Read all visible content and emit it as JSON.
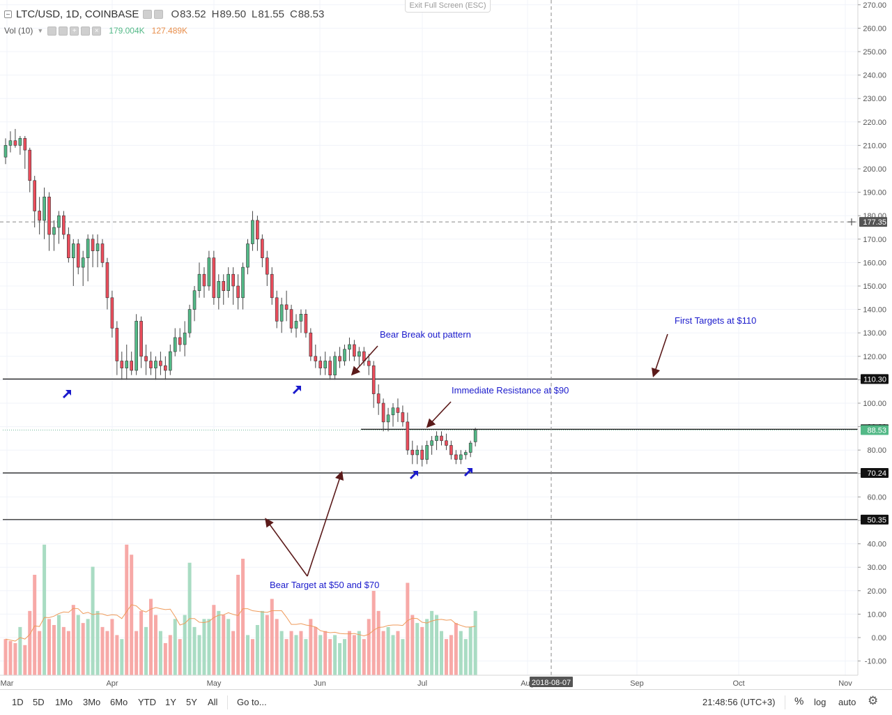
{
  "exit_full_screen": "Exit Full Screen (ESC)",
  "legend": {
    "symbol": "LTC/USD, 1D, COINBASE",
    "open_label": "O",
    "open": "83.52",
    "high_label": "H",
    "high": "89.50",
    "low_label": "L",
    "low": "81.55",
    "close_label": "C",
    "close": "88.53",
    "volume_label": "Vol (10)",
    "volume_value": "179.004K",
    "volume_ma_value": "127.489K"
  },
  "colors": {
    "up": "#53b987",
    "down": "#eb4d5c",
    "vol_up": "#a9dcc3",
    "vol_down": "#f7a9a7",
    "vol_ma": "#ef9a5a",
    "annotation": "#1a1acc",
    "arrow": "#5b1a1a",
    "grid": "#f0f3fa"
  },
  "toolbar": {
    "timeframes": [
      "1D",
      "5D",
      "1Mo",
      "3Mo",
      "6Mo",
      "YTD",
      "1Y",
      "5Y",
      "All"
    ],
    "goto": "Go to...",
    "clock": "21:48:56 (UTC+3)",
    "percent": "%",
    "log": "log",
    "auto": "auto",
    "settings_icon": "gear-icon"
  },
  "chart_data": {
    "type": "candlestick",
    "y_ticks": [
      "270.00",
      "260.00",
      "250.00",
      "240.00",
      "230.00",
      "220.00",
      "210.00",
      "200.00",
      "190.00",
      "180.00",
      "170.00",
      "160.00",
      "150.00",
      "140.00",
      "130.00",
      "120.00",
      "110.00",
      "100.00",
      "90.00",
      "80.00",
      "70.00",
      "60.00",
      "50.00",
      "40.00",
      "30.00",
      "20.00",
      "10.00",
      "0.00",
      "-10.00"
    ],
    "x_ticks": [
      "Mar",
      "Apr",
      "May",
      "Jun",
      "Jul",
      "Aug",
      "Sep",
      "Oct",
      "Nov"
    ],
    "crosshair_date": "2018-08-07",
    "crosshair_price": "177.35",
    "horizontal_levels": [
      110.3,
      88.88,
      70.24,
      50.35
    ],
    "price_labels": [
      {
        "value": 177.35,
        "text": "177.35",
        "style": "crosshair"
      },
      {
        "value": 110.3,
        "text": "110.30",
        "style": "level"
      },
      {
        "value": 88.88,
        "text": "88.88",
        "style": "level"
      },
      {
        "value": 88.53,
        "text": "88.53",
        "style": "last"
      },
      {
        "value": 70.24,
        "text": "70.24",
        "style": "level"
      },
      {
        "value": 50.35,
        "text": "50.35",
        "style": "level"
      }
    ],
    "annotations": [
      {
        "text": "Bear Break out pattern"
      },
      {
        "text": "Immediate Resistance at $90"
      },
      {
        "text": "First Targets at $110"
      },
      {
        "text": "Bear Target at $50 and $70"
      }
    ],
    "candles": [
      [
        205,
        213,
        202,
        210
      ],
      [
        210,
        216,
        207,
        212
      ],
      [
        212,
        217,
        209,
        210
      ],
      [
        210,
        214,
        206,
        213
      ],
      [
        213,
        214,
        200,
        208
      ],
      [
        208,
        209,
        190,
        195
      ],
      [
        195,
        197,
        175,
        182
      ],
      [
        182,
        188,
        172,
        178
      ],
      [
        178,
        192,
        170,
        188
      ],
      [
        188,
        190,
        165,
        172
      ],
      [
        172,
        178,
        165,
        175
      ],
      [
        175,
        182,
        168,
        180
      ],
      [
        180,
        182,
        170,
        172
      ],
      [
        172,
        175,
        160,
        162
      ],
      [
        162,
        170,
        150,
        168
      ],
      [
        168,
        170,
        155,
        158
      ],
      [
        158,
        165,
        150,
        162
      ],
      [
        162,
        172,
        152,
        170
      ],
      [
        170,
        172,
        158,
        165
      ],
      [
        165,
        172,
        158,
        168
      ],
      [
        168,
        170,
        158,
        160
      ],
      [
        160,
        162,
        140,
        145
      ],
      [
        145,
        148,
        128,
        132
      ],
      [
        132,
        135,
        112,
        118
      ],
      [
        118,
        122,
        110,
        115
      ],
      [
        115,
        125,
        110,
        118
      ],
      [
        118,
        122,
        112,
        114
      ],
      [
        114,
        138,
        112,
        135
      ],
      [
        135,
        137,
        115,
        120
      ],
      [
        120,
        125,
        112,
        118
      ],
      [
        118,
        122,
        112,
        115
      ],
      [
        115,
        120,
        110,
        118
      ],
      [
        118,
        122,
        112,
        116
      ],
      [
        116,
        120,
        110,
        114
      ],
      [
        114,
        125,
        112,
        122
      ],
      [
        122,
        132,
        120,
        128
      ],
      [
        128,
        132,
        122,
        125
      ],
      [
        125,
        135,
        120,
        130
      ],
      [
        130,
        142,
        128,
        140
      ],
      [
        140,
        150,
        135,
        148
      ],
      [
        148,
        160,
        145,
        155
      ],
      [
        155,
        158,
        145,
        150
      ],
      [
        150,
        165,
        148,
        162
      ],
      [
        162,
        165,
        142,
        145
      ],
      [
        145,
        155,
        140,
        152
      ],
      [
        152,
        155,
        142,
        148
      ],
      [
        148,
        158,
        145,
        155
      ],
      [
        155,
        158,
        142,
        150
      ],
      [
        150,
        155,
        140,
        145
      ],
      [
        145,
        160,
        140,
        158
      ],
      [
        158,
        170,
        155,
        168
      ],
      [
        168,
        182,
        165,
        178
      ],
      [
        178,
        180,
        165,
        170
      ],
      [
        170,
        172,
        158,
        162
      ],
      [
        162,
        165,
        150,
        155
      ],
      [
        155,
        158,
        142,
        145
      ],
      [
        145,
        148,
        132,
        135
      ],
      [
        135,
        145,
        130,
        142
      ],
      [
        142,
        148,
        135,
        140
      ],
      [
        140,
        142,
        130,
        132
      ],
      [
        132,
        138,
        128,
        135
      ],
      [
        135,
        140,
        130,
        138
      ],
      [
        138,
        140,
        128,
        130
      ],
      [
        130,
        132,
        118,
        120
      ],
      [
        120,
        125,
        115,
        118
      ],
      [
        118,
        120,
        112,
        115
      ],
      [
        115,
        122,
        112,
        118
      ],
      [
        118,
        120,
        110,
        112
      ],
      [
        112,
        122,
        110,
        120
      ],
      [
        120,
        124,
        115,
        118
      ],
      [
        118,
        125,
        116,
        123
      ],
      [
        123,
        128,
        118,
        125
      ],
      [
        125,
        127,
        118,
        120
      ],
      [
        120,
        124,
        116,
        122
      ],
      [
        122,
        124,
        116,
        118
      ],
      [
        118,
        121,
        112,
        116
      ],
      [
        116,
        118,
        98,
        104
      ],
      [
        104,
        108,
        95,
        100
      ],
      [
        100,
        102,
        88,
        92
      ],
      [
        92,
        98,
        88,
        95
      ],
      [
        95,
        100,
        90,
        98
      ],
      [
        98,
        102,
        92,
        96
      ],
      [
        96,
        99,
        90,
        92
      ],
      [
        92,
        96,
        78,
        80
      ],
      [
        80,
        84,
        74,
        78
      ],
      [
        78,
        82,
        74,
        80
      ],
      [
        80,
        82,
        73,
        76
      ],
      [
        76,
        84,
        74,
        82
      ],
      [
        82,
        86,
        78,
        84
      ],
      [
        84,
        88,
        80,
        86
      ],
      [
        86,
        88,
        82,
        84
      ],
      [
        84,
        87,
        80,
        82
      ],
      [
        82,
        84,
        76,
        78
      ],
      [
        78,
        80,
        74,
        76
      ],
      [
        76,
        80,
        74,
        78
      ],
      [
        78,
        80,
        76,
        79
      ],
      [
        79,
        84,
        77,
        83
      ],
      [
        83.52,
        89.5,
        81.55,
        88.53
      ]
    ],
    "volume": [
      [
        8,
        "d"
      ],
      [
        7,
        "d"
      ],
      [
        6,
        "d"
      ],
      [
        14,
        "u"
      ],
      [
        5,
        "d"
      ],
      [
        22,
        "d"
      ],
      [
        40,
        "d"
      ],
      [
        12,
        "d"
      ],
      [
        55,
        "u"
      ],
      [
        18,
        "d"
      ],
      [
        15,
        "d"
      ],
      [
        20,
        "u"
      ],
      [
        14,
        "d"
      ],
      [
        12,
        "d"
      ],
      [
        25,
        "d"
      ],
      [
        20,
        "u"
      ],
      [
        16,
        "d"
      ],
      [
        18,
        "u"
      ],
      [
        44,
        "u"
      ],
      [
        22,
        "u"
      ],
      [
        14,
        "d"
      ],
      [
        12,
        "d"
      ],
      [
        18,
        "d"
      ],
      [
        10,
        "d"
      ],
      [
        8,
        "u"
      ],
      [
        55,
        "d"
      ],
      [
        50,
        "d"
      ],
      [
        12,
        "d"
      ],
      [
        22,
        "d"
      ],
      [
        14,
        "u"
      ],
      [
        28,
        "d"
      ],
      [
        20,
        "d"
      ],
      [
        12,
        "u"
      ],
      [
        6,
        "d"
      ],
      [
        10,
        "d"
      ],
      [
        18,
        "u"
      ],
      [
        8,
        "d"
      ],
      [
        20,
        "u"
      ],
      [
        46,
        "u"
      ],
      [
        14,
        "u"
      ],
      [
        10,
        "u"
      ],
      [
        18,
        "u"
      ],
      [
        18,
        "u"
      ],
      [
        25,
        "d"
      ],
      [
        22,
        "u"
      ],
      [
        20,
        "d"
      ],
      [
        18,
        "u"
      ],
      [
        12,
        "d"
      ],
      [
        40,
        "d"
      ],
      [
        48,
        "d"
      ],
      [
        10,
        "u"
      ],
      [
        8,
        "d"
      ],
      [
        15,
        "u"
      ],
      [
        22,
        "u"
      ],
      [
        20,
        "d"
      ],
      [
        28,
        "d"
      ],
      [
        18,
        "d"
      ],
      [
        12,
        "u"
      ],
      [
        8,
        "d"
      ],
      [
        12,
        "d"
      ],
      [
        10,
        "u"
      ],
      [
        12,
        "d"
      ],
      [
        8,
        "u"
      ],
      [
        18,
        "d"
      ],
      [
        14,
        "d"
      ],
      [
        10,
        "u"
      ],
      [
        12,
        "d"
      ],
      [
        8,
        "d"
      ],
      [
        10,
        "u"
      ],
      [
        6,
        "u"
      ],
      [
        8,
        "u"
      ],
      [
        12,
        "d"
      ],
      [
        10,
        "d"
      ],
      [
        12,
        "u"
      ],
      [
        8,
        "d"
      ],
      [
        18,
        "d"
      ],
      [
        32,
        "d"
      ],
      [
        22,
        "d"
      ],
      [
        12,
        "d"
      ],
      [
        14,
        "u"
      ],
      [
        10,
        "u"
      ],
      [
        12,
        "d"
      ],
      [
        8,
        "u"
      ],
      [
        36,
        "d"
      ],
      [
        20,
        "d"
      ],
      [
        16,
        "u"
      ],
      [
        14,
        "d"
      ],
      [
        18,
        "u"
      ],
      [
        22,
        "u"
      ],
      [
        20,
        "u"
      ],
      [
        12,
        "u"
      ],
      [
        8,
        "d"
      ],
      [
        10,
        "d"
      ],
      [
        16,
        "d"
      ],
      [
        12,
        "u"
      ],
      [
        8,
        "u"
      ],
      [
        14,
        "u"
      ],
      [
        22,
        "u"
      ]
    ]
  }
}
